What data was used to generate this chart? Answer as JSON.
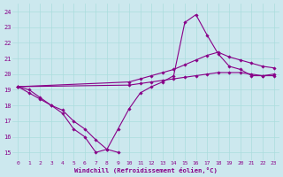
{
  "xlabel": "Windchill (Refroidissement éolien,°C)",
  "bg_color": "#cce8ee",
  "line_color": "#880088",
  "grid_color": "#aadddd",
  "xlim": [
    -0.5,
    23.5
  ],
  "ylim": [
    14.5,
    24.5
  ],
  "yticks": [
    15,
    16,
    17,
    18,
    19,
    20,
    21,
    22,
    23,
    24
  ],
  "xticks": [
    0,
    1,
    2,
    3,
    4,
    5,
    6,
    7,
    8,
    9,
    10,
    11,
    12,
    13,
    14,
    15,
    16,
    17,
    18,
    19,
    20,
    21,
    22,
    23
  ],
  "series": {
    "s1_x": [
      0,
      1,
      2,
      3,
      4,
      5,
      6,
      7,
      8,
      9,
      10,
      11,
      12,
      13,
      14,
      15,
      16,
      17,
      18,
      19,
      20,
      21,
      22,
      23
    ],
    "s1_y": [
      19.2,
      19.0,
      18.5,
      18.0,
      17.5,
      16.5,
      16.0,
      15.0,
      15.2,
      16.5,
      17.8,
      18.8,
      19.2,
      19.5,
      19.9,
      23.3,
      23.8,
      22.5,
      21.3,
      20.5,
      20.3,
      19.9,
      19.9,
      20.0
    ],
    "s2_x": [
      0,
      1,
      2,
      3,
      4,
      5,
      6,
      7,
      8,
      9
    ],
    "s2_y": [
      19.2,
      18.8,
      18.4,
      18.0,
      17.7,
      17.0,
      16.5,
      15.8,
      15.2,
      15.0
    ],
    "s3_x": [
      0,
      10,
      11,
      12,
      13,
      14,
      15,
      16,
      17,
      18,
      19,
      20,
      21,
      22,
      23
    ],
    "s3_y": [
      19.2,
      19.5,
      19.7,
      19.9,
      20.1,
      20.3,
      20.6,
      20.9,
      21.2,
      21.4,
      21.1,
      20.9,
      20.7,
      20.5,
      20.4
    ],
    "s4_x": [
      0,
      10,
      11,
      12,
      13,
      14,
      15,
      16,
      17,
      18,
      19,
      20,
      21,
      22,
      23
    ],
    "s4_y": [
      19.2,
      19.3,
      19.4,
      19.5,
      19.6,
      19.7,
      19.8,
      19.9,
      20.0,
      20.1,
      20.1,
      20.1,
      20.0,
      19.9,
      19.9
    ]
  }
}
